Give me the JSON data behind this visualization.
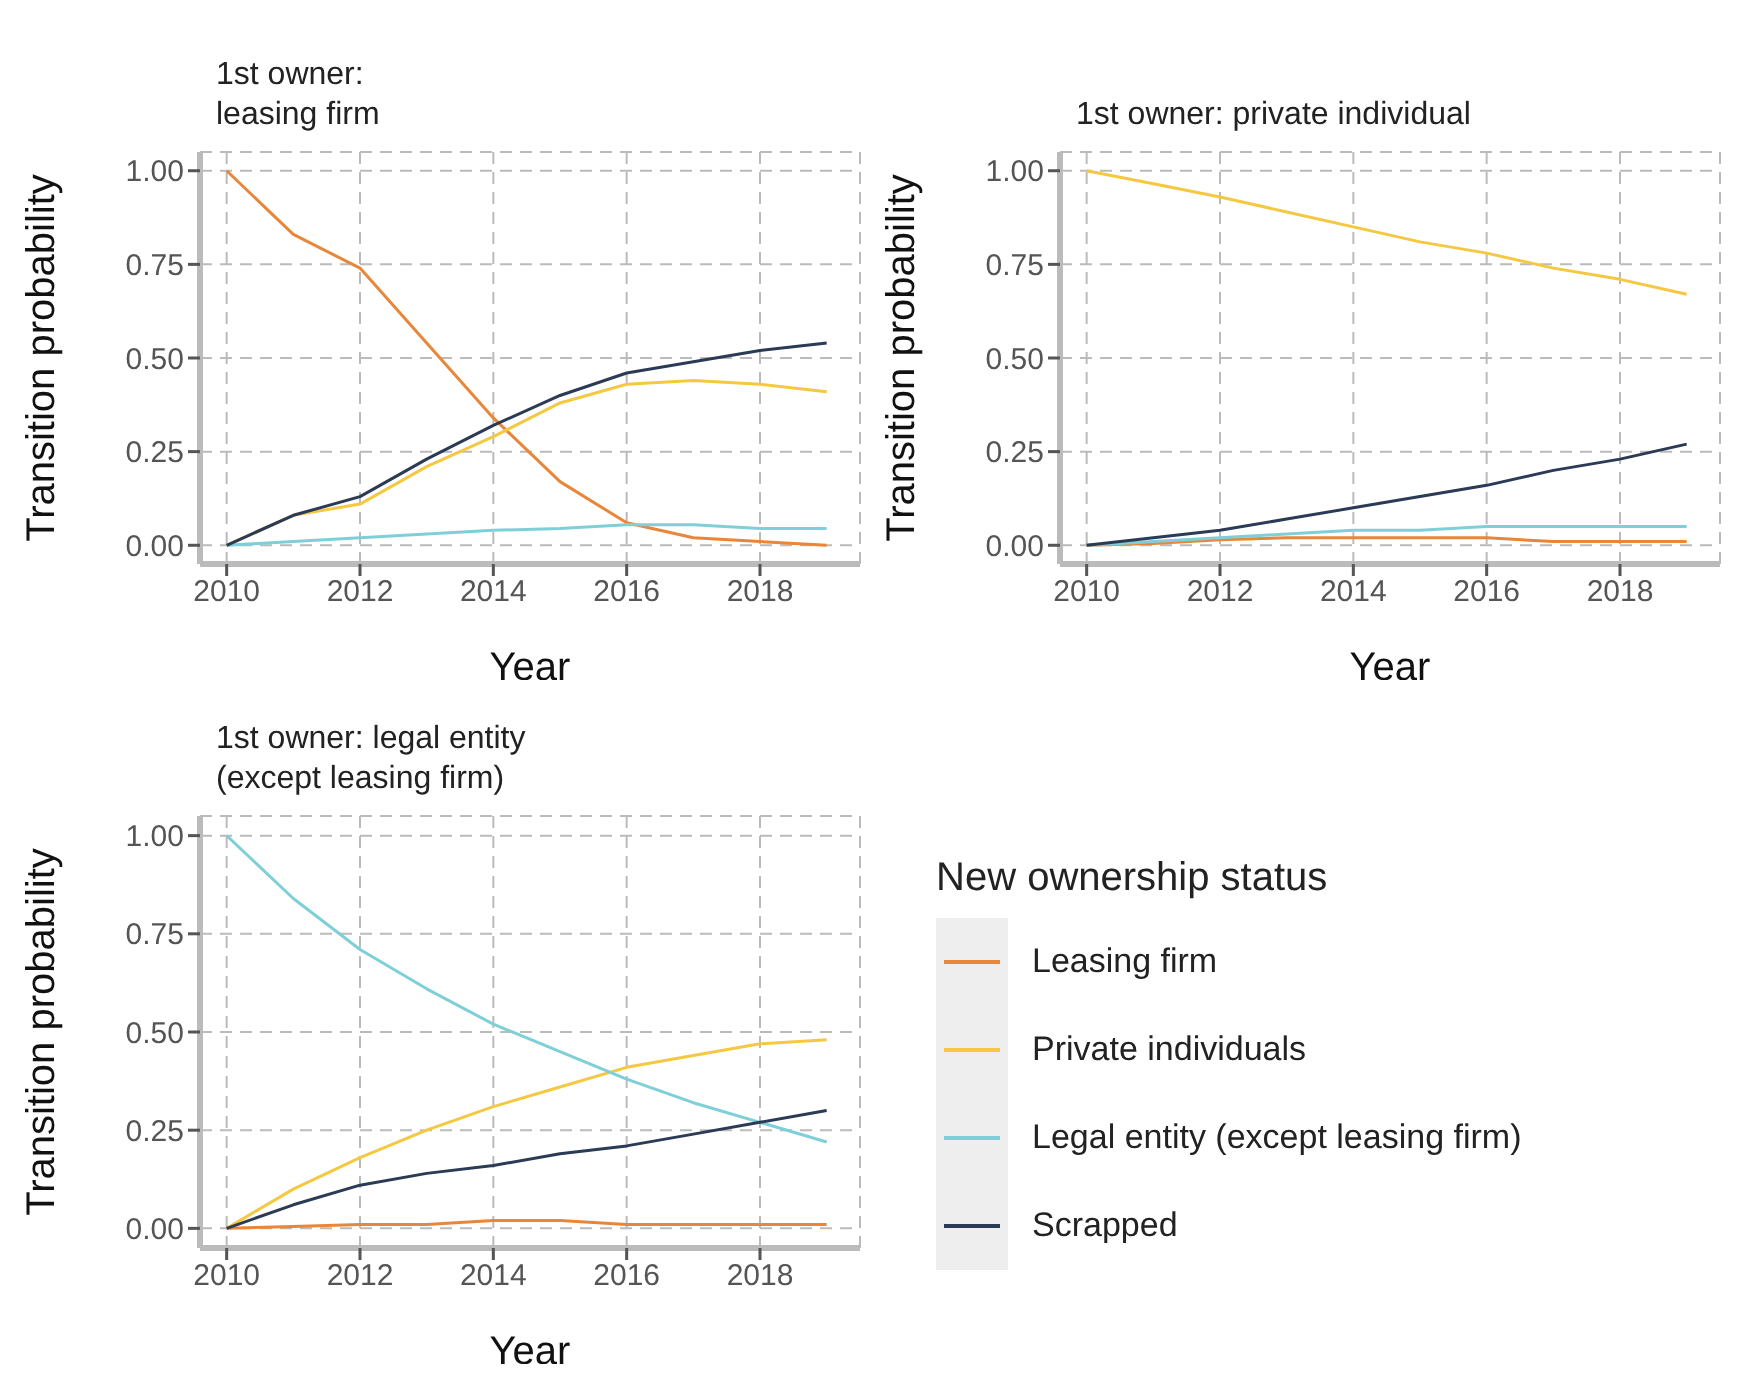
{
  "chart_data": [
    {
      "type": "line",
      "title": "1st owner:\nleasing firm",
      "xlabel": "Year",
      "ylabel": "Transition probability",
      "x": [
        2010,
        2011,
        2012,
        2013,
        2014,
        2015,
        2016,
        2017,
        2018,
        2019
      ],
      "xlim": [
        2009.6,
        2019.5
      ],
      "xticks": [
        2010,
        2012,
        2014,
        2016,
        2018
      ],
      "ylim": [
        -0.05,
        1.05
      ],
      "yticks": [
        {
          "value": 0,
          "label": "0.00"
        },
        {
          "value": 0.25,
          "label": "0.25"
        },
        {
          "value": 0.5,
          "label": "0.50"
        },
        {
          "value": 0.75,
          "label": "0.75"
        },
        {
          "value": 1,
          "label": "1.00"
        }
      ],
      "grid": true,
      "marker": "none",
      "line_style": "solid",
      "series": [
        {
          "color": "#e8873a",
          "values": [
            1.0,
            0.83,
            0.74,
            0.54,
            0.34,
            0.17,
            0.06,
            0.02,
            0.01,
            0.0
          ]
        },
        {
          "color": "#f5c842",
          "values": [
            0,
            0.08,
            0.11,
            0.21,
            0.29,
            0.38,
            0.43,
            0.44,
            0.43,
            0.41
          ]
        },
        {
          "color": "#7fcfd8",
          "values": [
            0,
            0.01,
            0.02,
            0.03,
            0.04,
            0.045,
            0.055,
            0.055,
            0.045,
            0.045
          ]
        },
        {
          "color": "#2b3a55",
          "values": [
            0,
            0.08,
            0.13,
            0.23,
            0.32,
            0.4,
            0.46,
            0.49,
            0.52,
            0.54
          ]
        }
      ]
    },
    {
      "type": "line",
      "title": "1st owner: private individual",
      "xlabel": "Year",
      "ylabel": "Transition probability",
      "x": [
        2010,
        2011,
        2012,
        2013,
        2014,
        2015,
        2016,
        2017,
        2018,
        2019
      ],
      "xlim": [
        2009.6,
        2019.5
      ],
      "xticks": [
        2010,
        2012,
        2014,
        2016,
        2018
      ],
      "ylim": [
        -0.05,
        1.05
      ],
      "yticks": [
        {
          "value": 0,
          "label": "0.00"
        },
        {
          "value": 0.25,
          "label": "0.25"
        },
        {
          "value": 0.5,
          "label": "0.50"
        },
        {
          "value": 0.75,
          "label": "0.75"
        },
        {
          "value": 1,
          "label": "1.00"
        }
      ],
      "grid": true,
      "marker": "none",
      "line_style": "solid",
      "series": [
        {
          "color": "#e8873a",
          "values": [
            0,
            0.005,
            0.015,
            0.02,
            0.02,
            0.02,
            0.02,
            0.01,
            0.01,
            0.01
          ]
        },
        {
          "color": "#f5c842",
          "values": [
            1.0,
            0.965,
            0.93,
            0.89,
            0.85,
            0.81,
            0.78,
            0.74,
            0.71,
            0.67
          ]
        },
        {
          "color": "#7fcfd8",
          "values": [
            0,
            0.01,
            0.02,
            0.03,
            0.04,
            0.04,
            0.05,
            0.05,
            0.05,
            0.05
          ]
        },
        {
          "color": "#2b3a55",
          "values": [
            0,
            0.02,
            0.04,
            0.07,
            0.1,
            0.13,
            0.16,
            0.2,
            0.23,
            0.27
          ]
        }
      ]
    },
    {
      "type": "line",
      "title": "1st owner: legal entity\n(except leasing firm)",
      "xlabel": "Year",
      "ylabel": "Transition probability",
      "legend_title": "New ownership status",
      "legend": "right",
      "x": [
        2010,
        2011,
        2012,
        2013,
        2014,
        2015,
        2016,
        2017,
        2018,
        2019
      ],
      "xlim": [
        2009.6,
        2019.5
      ],
      "xticks": [
        2010,
        2012,
        2014,
        2016,
        2018
      ],
      "ylim": [
        -0.05,
        1.05
      ],
      "yticks": [
        {
          "value": 0,
          "label": "0.00"
        },
        {
          "value": 0.25,
          "label": "0.25"
        },
        {
          "value": 0.5,
          "label": "0.50"
        },
        {
          "value": 0.75,
          "label": "0.75"
        },
        {
          "value": 1,
          "label": "1.00"
        }
      ],
      "grid": true,
      "marker": "none",
      "line_style": "solid",
      "series": [
        {
          "name": "Leasing firm",
          "color": "#e8873a",
          "values": [
            0,
            0.005,
            0.01,
            0.01,
            0.02,
            0.02,
            0.01,
            0.01,
            0.01,
            0.01
          ]
        },
        {
          "name": "Private individuals",
          "color": "#f5c842",
          "values": [
            0,
            0.1,
            0.18,
            0.25,
            0.31,
            0.36,
            0.41,
            0.44,
            0.47,
            0.48
          ]
        },
        {
          "name": "Legal entity (except leasing firm)",
          "color": "#7fcfd8",
          "values": [
            1.0,
            0.84,
            0.71,
            0.61,
            0.52,
            0.45,
            0.38,
            0.32,
            0.27,
            0.22
          ]
        },
        {
          "name": "Scrapped",
          "color": "#2b3a55",
          "values": [
            0,
            0.06,
            0.11,
            0.14,
            0.16,
            0.19,
            0.21,
            0.24,
            0.27,
            0.3
          ]
        }
      ]
    }
  ]
}
